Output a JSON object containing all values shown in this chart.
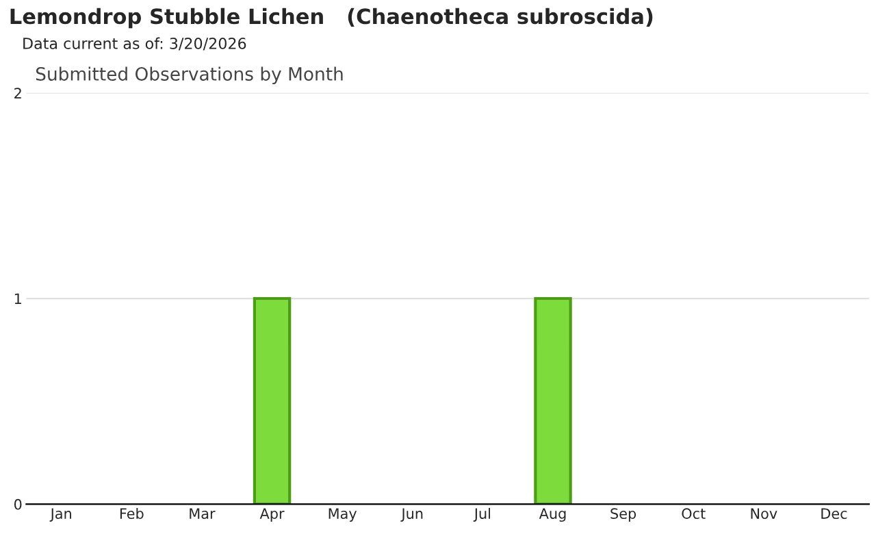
{
  "chart_data": {
    "type": "bar",
    "title": "Lemondrop Stubble Lichen   (Chaenotheca subroscida)",
    "subtitle": "Data current as of: 3/20/2026",
    "annotations": [
      "Submitted Observations by Month"
    ],
    "categories": [
      "Jan",
      "Feb",
      "Mar",
      "Apr",
      "May",
      "Jun",
      "Jul",
      "Aug",
      "Sep",
      "Oct",
      "Nov",
      "Dec"
    ],
    "values": [
      0,
      0,
      0,
      1,
      0,
      0,
      0,
      1,
      0,
      0,
      0,
      0
    ],
    "color": "#7ddc3c",
    "ylim": [
      0,
      2
    ],
    "yticks": [
      0,
      1,
      2
    ],
    "grid": "y",
    "legend": false
  }
}
